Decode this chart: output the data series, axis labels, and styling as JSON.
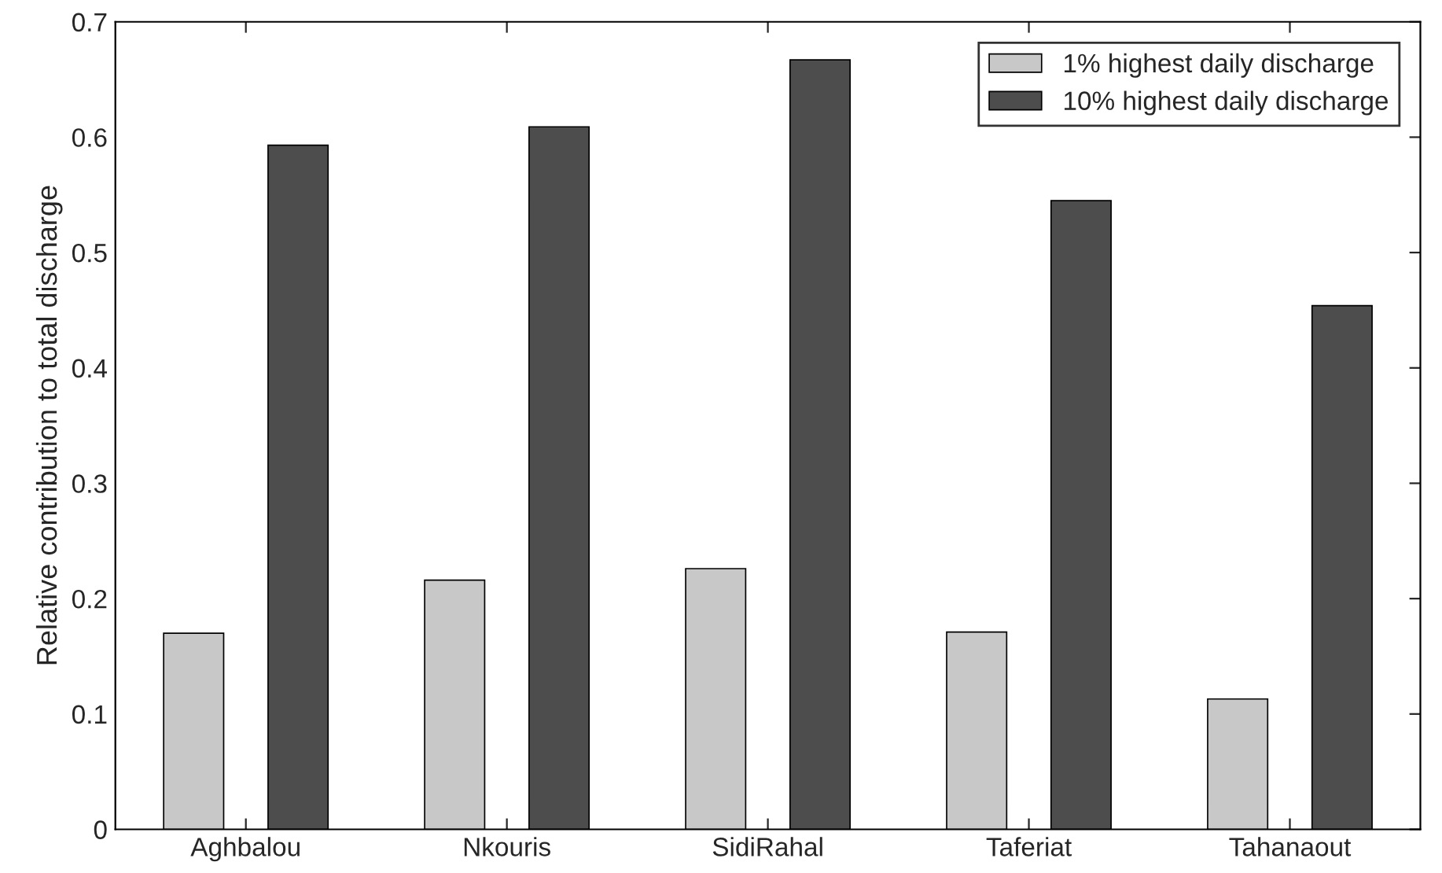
{
  "chart_data": {
    "type": "bar",
    "ylabel": "Relative contribution to total discharge",
    "categories": [
      "Aghbalou",
      "Nkouris",
      "SidiRahal",
      "Taferiat",
      "Tahanaout"
    ],
    "series": [
      {
        "name": "1% highest daily discharge",
        "color": "#c8c8c8",
        "values": [
          0.17,
          0.216,
          0.226,
          0.171,
          0.113
        ]
      },
      {
        "name": "10% highest daily discharge",
        "color": "#4d4d4d",
        "values": [
          0.593,
          0.609,
          0.667,
          0.545,
          0.454
        ]
      }
    ],
    "ylim": [
      0,
      0.7
    ],
    "yticks": [
      0,
      0.1,
      0.2,
      0.3,
      0.4,
      0.5,
      0.6,
      0.7
    ],
    "grid": false,
    "legend": "top right"
  }
}
